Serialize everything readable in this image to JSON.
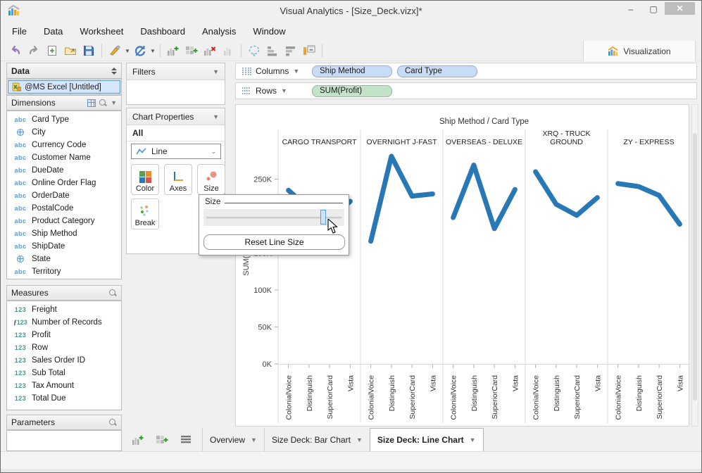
{
  "window": {
    "title": "Visual Analytics - [Size_Deck.vizx]*",
    "minimize": "–",
    "maximize": "▢",
    "close": "✕"
  },
  "menu": {
    "items": [
      "File",
      "Data",
      "Worksheet",
      "Dashboard",
      "Analysis",
      "Window"
    ]
  },
  "toolbar": {
    "icons": [
      "undo-icon",
      "redo-icon",
      "new-workbook-icon",
      "open-icon",
      "save-icon",
      "sep",
      "data-source-icon",
      "caret",
      "refresh-icon",
      "caret",
      "sep",
      "add-worksheet-icon",
      "add-dashboard-icon",
      "delete-sheet-icon",
      "duplicate-sheet-icon",
      "sep",
      "lasso-icon",
      "sort-ascending-icon",
      "sort-descending-icon",
      "fit-view-icon",
      "sep"
    ],
    "visualization_label": "Visualization"
  },
  "data_panel": {
    "title": "Data",
    "connection_label": "@MS Excel [Untitled]",
    "dimensions": {
      "title": "Dimensions",
      "items": [
        {
          "icon": "abc",
          "label": "Card Type"
        },
        {
          "icon": "globe",
          "label": "City"
        },
        {
          "icon": "abc",
          "label": "Currency Code"
        },
        {
          "icon": "abc",
          "label": "Customer Name"
        },
        {
          "icon": "abc",
          "label": "DueDate"
        },
        {
          "icon": "abc",
          "label": "Online Order Flag"
        },
        {
          "icon": "abc",
          "label": "OrderDate"
        },
        {
          "icon": "abc",
          "label": "PostalCode"
        },
        {
          "icon": "abc",
          "label": "Product Category"
        },
        {
          "icon": "abc",
          "label": "Ship Method"
        },
        {
          "icon": "abc",
          "label": "ShipDate"
        },
        {
          "icon": "globe",
          "label": "State"
        },
        {
          "icon": "abc",
          "label": "Territory"
        }
      ]
    },
    "measures": {
      "title": "Measures",
      "items": [
        {
          "icon": "123",
          "label": "Freight"
        },
        {
          "icon": "fx123",
          "label": "Number of Records"
        },
        {
          "icon": "123",
          "label": "Profit"
        },
        {
          "icon": "123",
          "label": "Row"
        },
        {
          "icon": "123",
          "label": "Sales Order ID"
        },
        {
          "icon": "123",
          "label": "Sub Total"
        },
        {
          "icon": "123",
          "label": "Tax Amount"
        },
        {
          "icon": "123",
          "label": "Total Due"
        }
      ]
    },
    "parameters": {
      "title": "Parameters"
    }
  },
  "filters_panel": {
    "title": "Filters"
  },
  "chart_properties": {
    "title": "Chart Properties",
    "scope_label": "All",
    "mark_type": "Line",
    "buttons": {
      "color": "Color",
      "axes": "Axes",
      "size": "Size",
      "break": "Break"
    }
  },
  "shelves": {
    "columns": {
      "label": "Columns",
      "pills": [
        "Ship Method",
        "Card Type"
      ]
    },
    "rows": {
      "label": "Rows",
      "pills": [
        "SUM(Profit)"
      ]
    }
  },
  "size_popup": {
    "title": "Size",
    "reset_label": "Reset Line Size",
    "slider_percent": 88
  },
  "chart_data": {
    "type": "line",
    "title": "Ship Method / Card Type",
    "ylabel": "SUM(Profit)",
    "line_color": "#2878b5",
    "x_categories": [
      "ColonialVoice",
      "Distinguish",
      "SuperiorCard",
      "Vista"
    ],
    "y_tick_values": [
      0,
      50000,
      100000,
      150000,
      200000,
      250000
    ],
    "y_tick_labels": [
      "0K",
      "50K",
      "100K",
      "150K",
      "200K",
      "250K"
    ],
    "ylim": [
      0,
      300000
    ],
    "panels": [
      {
        "name": "CARGO TRANSPORT",
        "values": [
          235000,
          210000,
          195000,
          220000
        ]
      },
      {
        "name": "OVERNIGHT J-FAST",
        "values": [
          166000,
          281000,
          227000,
          230000
        ]
      },
      {
        "name": "OVERSEAS - DELUXE",
        "values": [
          198000,
          269000,
          183000,
          236000
        ]
      },
      {
        "name": "XRQ - TRUCK GROUND",
        "values": [
          260000,
          216000,
          201000,
          225000
        ]
      },
      {
        "name": "ZY - EXPRESS",
        "values": [
          244000,
          240000,
          228000,
          189000
        ]
      }
    ]
  },
  "tabbar": {
    "icons": [
      "new-worksheet-icon",
      "new-dashboard-icon",
      "sheet-list-icon"
    ],
    "tabs": [
      {
        "label": "Overview",
        "active": false
      },
      {
        "label": "Size Deck: Bar Chart",
        "active": false
      },
      {
        "label": "Size Deck: Line Chart",
        "active": true
      }
    ]
  },
  "colors": {
    "accent_blue": "#2878b5",
    "pill_dimension": "#c9dcf5",
    "pill_measure": "#c3e3c9",
    "selected_connection": "#d6e6fb"
  }
}
